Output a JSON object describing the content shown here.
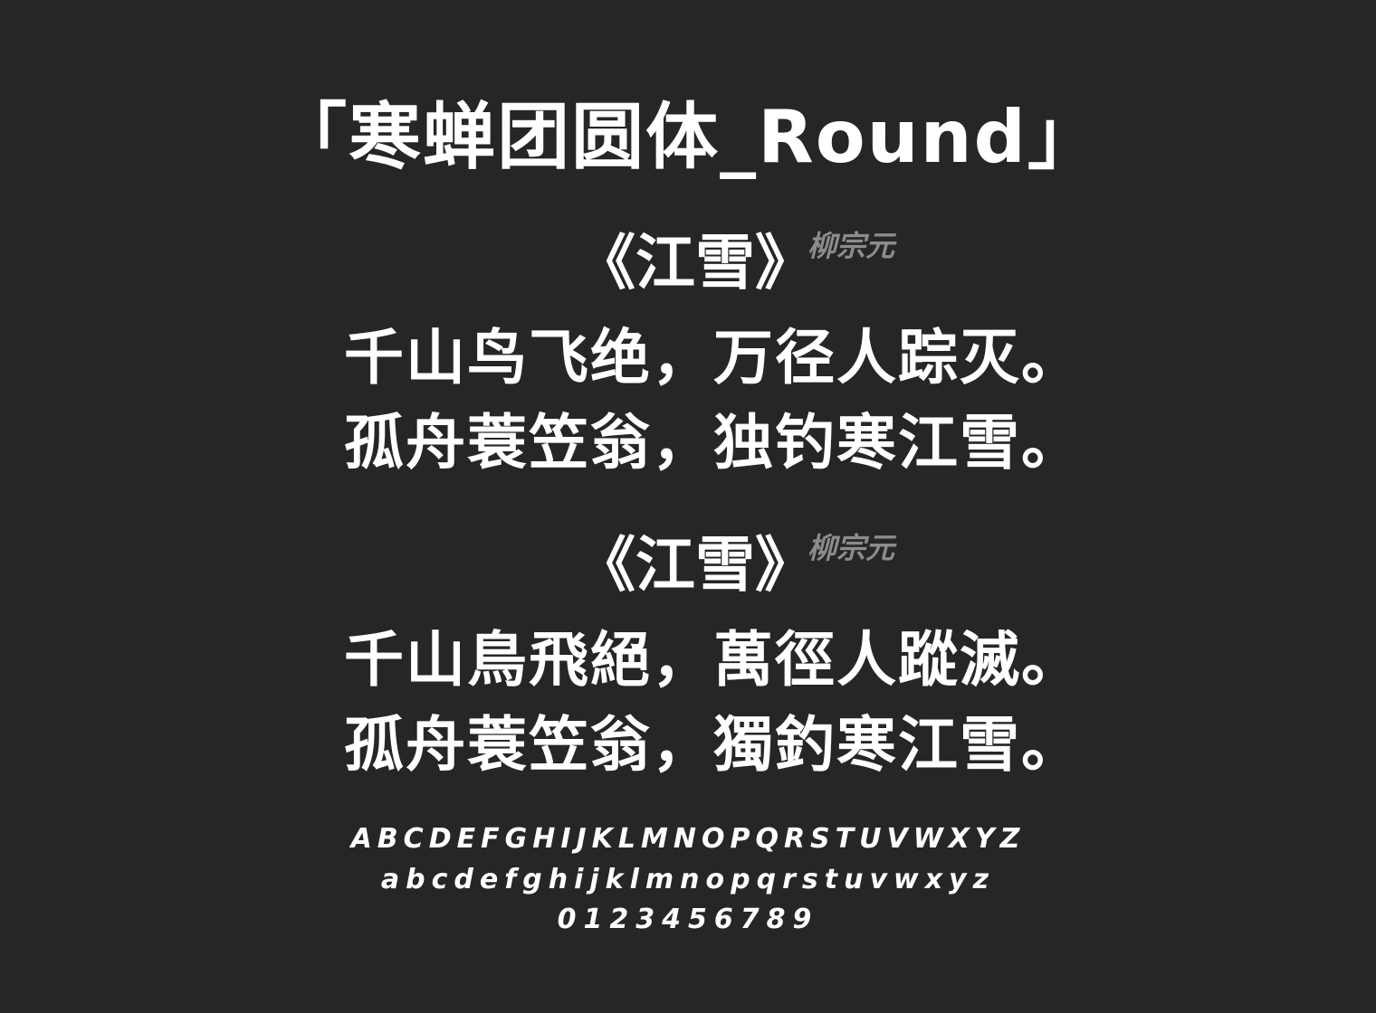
{
  "title": "「寒蝉团圆体_Round」",
  "poems": [
    {
      "title": "《江雪》",
      "author": "柳宗元",
      "lines": [
        "千山鸟飞绝，万径人踪灭。",
        "孤舟蓑笠翁，独钓寒江雪。"
      ]
    },
    {
      "title": "《江雪》",
      "author": "柳宗元",
      "lines": [
        "千山鳥飛絕，萬徑人蹤滅。",
        "孤舟蓑笠翁，獨釣寒江雪。"
      ]
    }
  ],
  "alphabet": {
    "uppercase": "ABCDEFGHIJKLMNOPQRSTUVWXYZ",
    "lowercase": "abcdefghijklmnopqrstuvwxyz",
    "digits": "0123456789"
  },
  "colors": {
    "background": "#262626",
    "text": "#ffffff",
    "author": "#8c8c8c"
  }
}
